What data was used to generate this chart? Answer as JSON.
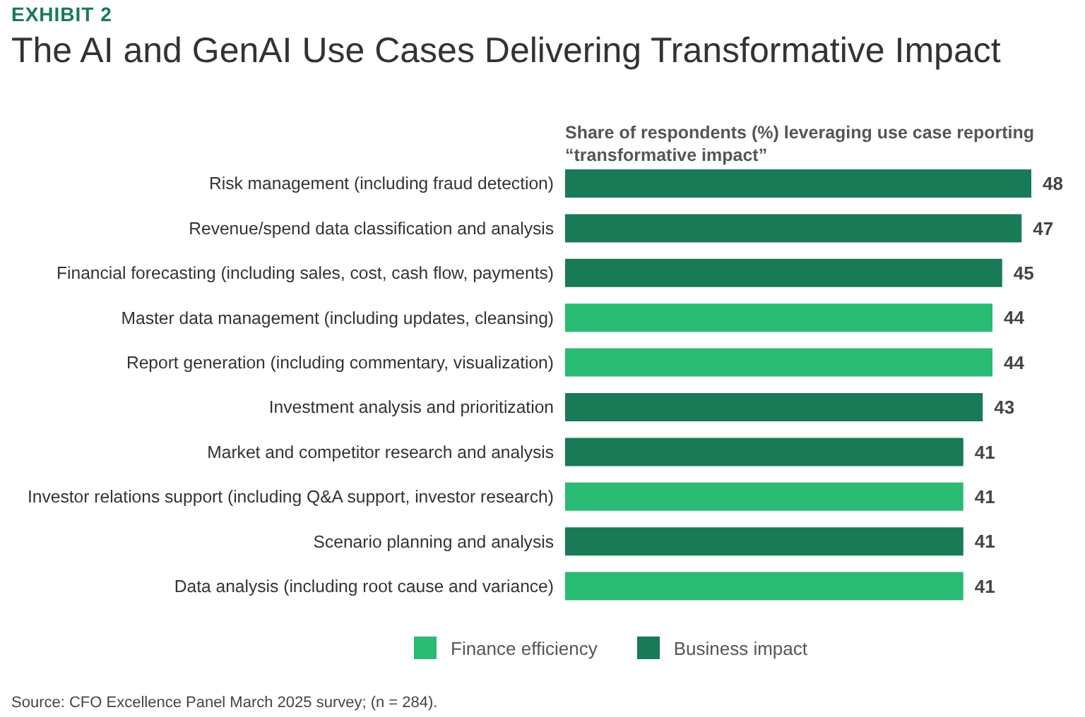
{
  "chart_data": {
    "type": "bar",
    "orientation": "horizontal",
    "stacked": true,
    "subtitle": "EXHIBIT 2",
    "title": "The AI and GenAI Use Cases Delivering Transformative Impact",
    "xlabel": "Share of respondents (%) leveraging use case reporting “transformative impact”",
    "categories": [
      "Risk management (including fraud detection)",
      "Revenue/spend data classification and analysis",
      "Financial forecasting (including sales, cost, cash flow, payments)",
      "Master data management (including updates, cleansing)",
      "Report generation (including commentary, visualization)",
      "Investment analysis and prioritization",
      "Market and competitor research and analysis",
      "Investor relations support (including Q&A support, investor research)",
      "Scenario planning and analysis",
      "Data analysis (including root cause and variance)"
    ],
    "series": [
      {
        "name": "Finance efficiency",
        "color": "#29ba74",
        "values": [
          null,
          null,
          null,
          44,
          44,
          null,
          null,
          41,
          null,
          41
        ]
      },
      {
        "name": "Business impact",
        "color": "#197a56",
        "values": [
          48,
          47,
          45,
          null,
          null,
          43,
          41,
          null,
          41,
          null
        ]
      }
    ],
    "data_labels": true,
    "legend": "bottom",
    "grid": false,
    "annotations": [
      "Source: CFO Excellence Panel March 2025 survey; (n = 284)."
    ]
  }
}
